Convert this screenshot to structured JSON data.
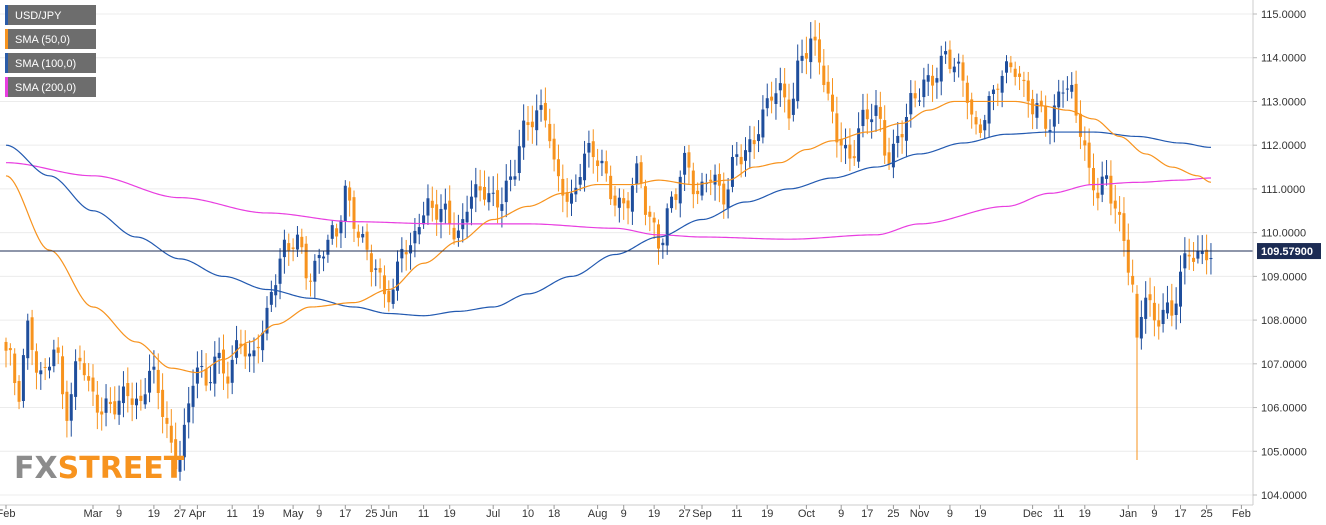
{
  "chart_data": {
    "type": "candlestick",
    "ylim": [
      104.0,
      115.0
    ],
    "yticks": [
      "104.0000",
      "105.0000",
      "106.0000",
      "107.0000",
      "108.0000",
      "109.0000",
      "110.0000",
      "111.0000",
      "112.0000",
      "113.0000",
      "114.0000",
      "115.0000"
    ],
    "xticks": [
      {
        "label": "Feb",
        "i": 0
      },
      {
        "label": "Mar",
        "i": 20
      },
      {
        "label": "9",
        "i": 26
      },
      {
        "label": "19",
        "i": 34
      },
      {
        "label": "27",
        "i": 40
      },
      {
        "label": "Apr",
        "i": 44
      },
      {
        "label": "11",
        "i": 52
      },
      {
        "label": "19",
        "i": 58
      },
      {
        "label": "May",
        "i": 66
      },
      {
        "label": "9",
        "i": 72
      },
      {
        "label": "17",
        "i": 78
      },
      {
        "label": "25",
        "i": 84
      },
      {
        "label": "Jun",
        "i": 88
      },
      {
        "label": "11",
        "i": 96
      },
      {
        "label": "19",
        "i": 102
      },
      {
        "label": "Jul",
        "i": 112
      },
      {
        "label": "10",
        "i": 120
      },
      {
        "label": "18",
        "i": 126
      },
      {
        "label": "Aug",
        "i": 136
      },
      {
        "label": "9",
        "i": 142
      },
      {
        "label": "19",
        "i": 149
      },
      {
        "label": "27",
        "i": 156
      },
      {
        "label": "Sep",
        "i": 160
      },
      {
        "label": "11",
        "i": 168
      },
      {
        "label": "19",
        "i": 175
      },
      {
        "label": "Oct",
        "i": 184
      },
      {
        "label": "9",
        "i": 192
      },
      {
        "label": "17",
        "i": 198
      },
      {
        "label": "25",
        "i": 204
      },
      {
        "label": "Nov",
        "i": 210
      },
      {
        "label": "9",
        "i": 217
      },
      {
        "label": "19",
        "i": 224
      },
      {
        "label": "Dec",
        "i": 236
      },
      {
        "label": "11",
        "i": 242
      },
      {
        "label": "19",
        "i": 248
      },
      {
        "label": "Jan",
        "i": 258
      },
      {
        "label": "9",
        "i": 264
      },
      {
        "label": "17",
        "i": 270
      },
      {
        "label": "25",
        "i": 276
      },
      {
        "label": "Feb",
        "i": 284
      }
    ],
    "legend": [
      {
        "label": "USD/JPY",
        "color": "#2b5ca8"
      },
      {
        "label": "SMA (50,0)",
        "color": "#f7931e"
      },
      {
        "label": "SMA (100,0)",
        "color": "#2b5ca8"
      },
      {
        "label": "SMA (200,0)",
        "color": "#e83ee0"
      }
    ],
    "last_price": 109.579,
    "last_price_label": "109.57900",
    "colors": {
      "up": "#1f4e9c",
      "down": "#f7931e",
      "sma50": "#f7931e",
      "sma100": "#2259b0",
      "sma200": "#e83ee0",
      "price_line": "#1c2c54"
    },
    "close_anchors": [
      [
        0,
        107.3
      ],
      [
        3,
        106.2
      ],
      [
        5,
        107.8
      ],
      [
        8,
        106.8
      ],
      [
        11,
        107.3
      ],
      [
        14,
        105.8
      ],
      [
        17,
        107.3
      ],
      [
        20,
        106.3
      ],
      [
        22,
        105.8
      ],
      [
        25,
        106.0
      ],
      [
        28,
        106.5
      ],
      [
        31,
        106.0
      ],
      [
        33,
        106.8
      ],
      [
        36,
        106.0
      ],
      [
        39,
        104.8
      ],
      [
        41,
        105.5
      ],
      [
        44,
        106.9
      ],
      [
        46,
        106.4
      ],
      [
        48,
        107.3
      ],
      [
        51,
        106.8
      ],
      [
        54,
        107.4
      ],
      [
        56,
        107.0
      ],
      [
        59,
        107.9
      ],
      [
        62,
        109.0
      ],
      [
        64,
        109.5
      ],
      [
        67,
        109.8
      ],
      [
        70,
        109.1
      ],
      [
        73,
        109.6
      ],
      [
        76,
        109.9
      ],
      [
        78,
        111.0
      ],
      [
        80,
        110.4
      ],
      [
        82,
        109.8
      ],
      [
        84,
        109.2
      ],
      [
        87,
        108.6
      ],
      [
        89,
        108.7
      ],
      [
        91,
        109.9
      ],
      [
        93,
        109.5
      ],
      [
        95,
        110.2
      ],
      [
        98,
        110.6
      ],
      [
        101,
        110.6
      ],
      [
        104,
        109.8
      ],
      [
        107,
        110.8
      ],
      [
        110,
        111.1
      ],
      [
        113,
        110.7
      ],
      [
        116,
        111.0
      ],
      [
        119,
        112.4
      ],
      [
        122,
        112.9
      ],
      [
        124,
        112.6
      ],
      [
        127,
        111.0
      ],
      [
        130,
        110.8
      ],
      [
        133,
        111.9
      ],
      [
        136,
        111.6
      ],
      [
        139,
        110.9
      ],
      [
        142,
        110.7
      ],
      [
        145,
        111.3
      ],
      [
        148,
        110.2
      ],
      [
        150,
        109.8
      ],
      [
        153,
        110.8
      ],
      [
        156,
        111.5
      ],
      [
        159,
        110.8
      ],
      [
        162,
        111.5
      ],
      [
        165,
        110.8
      ],
      [
        168,
        111.6
      ],
      [
        171,
        112.0
      ],
      [
        174,
        112.8
      ],
      [
        177,
        113.2
      ],
      [
        180,
        112.8
      ],
      [
        183,
        114.2
      ],
      [
        185,
        114.4
      ],
      [
        187,
        113.9
      ],
      [
        189,
        112.9
      ],
      [
        191,
        112.3
      ],
      [
        194,
        111.8
      ],
      [
        197,
        112.5
      ],
      [
        200,
        112.7
      ],
      [
        203,
        111.8
      ],
      [
        206,
        112.4
      ],
      [
        209,
        113.0
      ],
      [
        212,
        113.5
      ],
      [
        214,
        113.8
      ],
      [
        216,
        114.1
      ],
      [
        218,
        113.7
      ],
      [
        220,
        113.4
      ],
      [
        223,
        112.4
      ],
      [
        226,
        113.0
      ],
      [
        229,
        113.5
      ],
      [
        232,
        113.8
      ],
      [
        234,
        113.4
      ],
      [
        237,
        112.8
      ],
      [
        240,
        112.3
      ],
      [
        243,
        113.5
      ],
      [
        245,
        113.3
      ],
      [
        247,
        112.4
      ],
      [
        249,
        111.2
      ],
      [
        251,
        110.8
      ],
      [
        253,
        111.3
      ],
      [
        255,
        110.7
      ],
      [
        257,
        109.9
      ],
      [
        259,
        108.6
      ],
      [
        260,
        107.6
      ],
      [
        262,
        108.6
      ],
      [
        264,
        108.0
      ],
      [
        266,
        108.4
      ],
      [
        268,
        108.1
      ],
      [
        270,
        108.9
      ],
      [
        272,
        109.5
      ],
      [
        274,
        109.5
      ],
      [
        276,
        109.7
      ],
      [
        277,
        109.58
      ]
    ],
    "down_overrides": [
      {
        "i": 260,
        "open": 108.6,
        "high": 108.8,
        "low": 104.8,
        "close": 107.6
      }
    ],
    "sma50_anchors": [
      [
        0,
        111.3
      ],
      [
        10,
        109.6
      ],
      [
        20,
        108.3
      ],
      [
        30,
        107.5
      ],
      [
        38,
        106.9
      ],
      [
        44,
        106.8
      ],
      [
        50,
        107.1
      ],
      [
        56,
        107.5
      ],
      [
        62,
        107.9
      ],
      [
        70,
        108.3
      ],
      [
        80,
        108.4
      ],
      [
        88,
        108.7
      ],
      [
        96,
        109.3
      ],
      [
        104,
        109.8
      ],
      [
        112,
        110.3
      ],
      [
        120,
        110.6
      ],
      [
        128,
        110.9
      ],
      [
        136,
        111.1
      ],
      [
        144,
        111.1
      ],
      [
        150,
        111.2
      ],
      [
        158,
        111.1
      ],
      [
        166,
        111.2
      ],
      [
        172,
        111.5
      ],
      [
        178,
        111.6
      ],
      [
        184,
        111.9
      ],
      [
        190,
        112.1
      ],
      [
        198,
        112.3
      ],
      [
        206,
        112.5
      ],
      [
        212,
        112.8
      ],
      [
        218,
        113.0
      ],
      [
        226,
        113.0
      ],
      [
        232,
        113.0
      ],
      [
        238,
        112.9
      ],
      [
        244,
        112.8
      ],
      [
        250,
        112.6
      ],
      [
        256,
        112.2
      ],
      [
        262,
        111.8
      ],
      [
        268,
        111.5
      ],
      [
        274,
        111.3
      ],
      [
        277,
        111.15
      ]
    ],
    "sma100_anchors": [
      [
        0,
        112.0
      ],
      [
        10,
        111.3
      ],
      [
        20,
        110.5
      ],
      [
        30,
        109.9
      ],
      [
        40,
        109.4
      ],
      [
        50,
        109.0
      ],
      [
        60,
        108.7
      ],
      [
        70,
        108.5
      ],
      [
        80,
        108.3
      ],
      [
        88,
        108.15
      ],
      [
        96,
        108.1
      ],
      [
        104,
        108.2
      ],
      [
        112,
        108.3
      ],
      [
        120,
        108.6
      ],
      [
        130,
        109.0
      ],
      [
        140,
        109.5
      ],
      [
        150,
        109.9
      ],
      [
        160,
        110.3
      ],
      [
        170,
        110.7
      ],
      [
        180,
        111.0
      ],
      [
        190,
        111.25
      ],
      [
        200,
        111.5
      ],
      [
        210,
        111.8
      ],
      [
        220,
        112.05
      ],
      [
        230,
        112.25
      ],
      [
        240,
        112.3
      ],
      [
        250,
        112.3
      ],
      [
        260,
        112.2
      ],
      [
        270,
        112.05
      ],
      [
        277,
        111.95
      ]
    ],
    "sma200_anchors": [
      [
        0,
        111.6
      ],
      [
        20,
        111.3
      ],
      [
        40,
        110.8
      ],
      [
        60,
        110.45
      ],
      [
        80,
        110.25
      ],
      [
        100,
        110.2
      ],
      [
        120,
        110.2
      ],
      [
        140,
        110.1
      ],
      [
        150,
        109.95
      ],
      [
        160,
        109.9
      ],
      [
        180,
        109.85
      ],
      [
        200,
        109.95
      ],
      [
        210,
        110.2
      ],
      [
        230,
        110.6
      ],
      [
        240,
        110.9
      ],
      [
        250,
        111.1
      ],
      [
        260,
        111.15
      ],
      [
        270,
        111.2
      ],
      [
        277,
        111.25
      ]
    ]
  },
  "watermark": {
    "part1": "FX",
    "part2": "STREET"
  }
}
